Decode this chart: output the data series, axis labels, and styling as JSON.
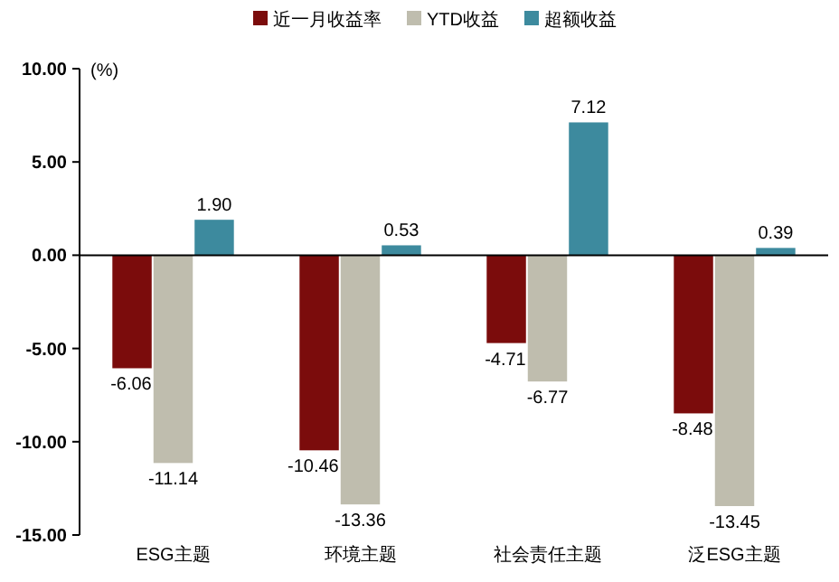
{
  "chart_data": {
    "type": "bar",
    "ylabel": "(%)",
    "categories": [
      "ESG主题",
      "环境主题",
      "社会责任主题",
      "泛ESG主题"
    ],
    "series": [
      {
        "name": "近一月收益率",
        "color": "#7b0c0c",
        "values": [
          -6.06,
          -10.46,
          -4.71,
          -8.48
        ],
        "value_labels": [
          "-6.06",
          "-10.46",
          "-4.71",
          "-8.48"
        ]
      },
      {
        "name": "YTD收益",
        "color": "#bfbdae",
        "values": [
          -11.14,
          -13.36,
          -6.77,
          -13.45
        ],
        "value_labels": [
          "-11.14",
          "-13.36",
          "-6.77",
          "-13.45"
        ]
      },
      {
        "name": "超额收益",
        "color": "#3d8a9e",
        "values": [
          1.9,
          0.53,
          7.12,
          0.39
        ],
        "value_labels": [
          "1.90",
          "0.53",
          "7.12",
          "0.39"
        ]
      }
    ],
    "ylim": [
      -15,
      10
    ],
    "yticks": [
      {
        "value": -15,
        "label": "-15.00"
      },
      {
        "value": -10,
        "label": "-10.00"
      },
      {
        "value": -5,
        "label": "-5.00"
      },
      {
        "value": 0,
        "label": "0.00"
      },
      {
        "value": 5,
        "label": "5.00"
      },
      {
        "value": 10,
        "label": "10.00"
      }
    ],
    "legend": "top"
  }
}
